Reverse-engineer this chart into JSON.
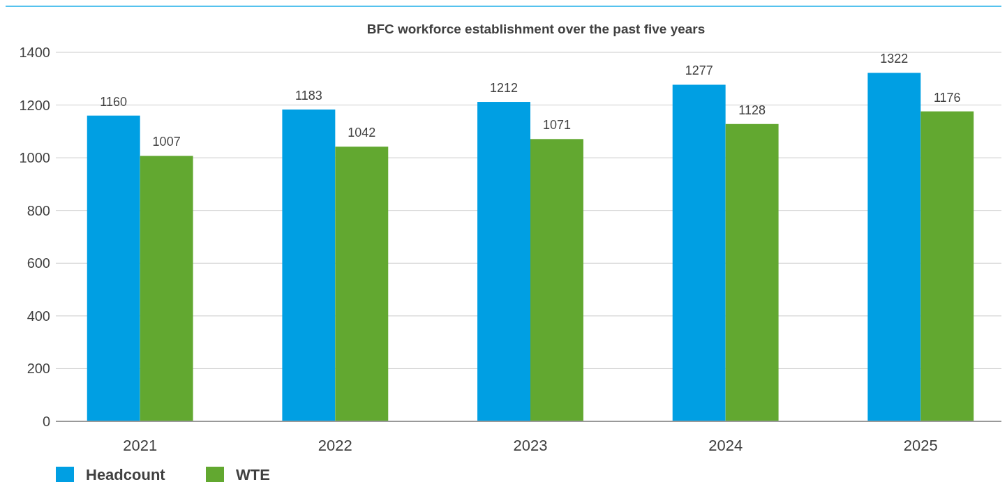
{
  "chart_data": {
    "type": "bar",
    "title": "BFC workforce establishment over the past five years",
    "categories": [
      "2021",
      "2022",
      "2023",
      "2024",
      "2025"
    ],
    "series": [
      {
        "name": "Headcount",
        "color": "#009fe3",
        "values": [
          1160,
          1183,
          1212,
          1277,
          1322
        ]
      },
      {
        "name": "WTE",
        "color": "#62a830",
        "values": [
          1007,
          1042,
          1071,
          1128,
          1176
        ]
      }
    ],
    "ylim": [
      0,
      1400
    ],
    "yticks": [
      0,
      200,
      400,
      600,
      800,
      1000,
      1200,
      1400
    ],
    "grid": "y",
    "legend": "bottom left",
    "data_labels": true
  }
}
